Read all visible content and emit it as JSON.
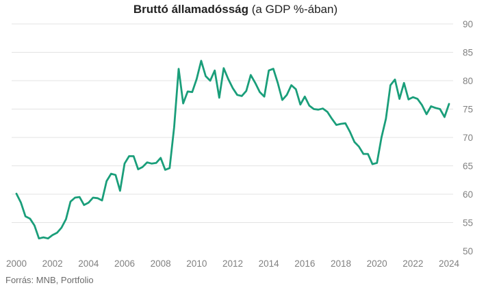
{
  "title": {
    "bold": "Bruttó államadósság",
    "rest": " (a GDP %-ában)"
  },
  "source": "Forrás: MNB, Portfolio",
  "colors": {
    "line": "#1a9e7a",
    "grid": "#e3e3e3",
    "tick": "#808080"
  },
  "chart_data": {
    "type": "line",
    "title": "Bruttó államadósság (a GDP %-ában)",
    "xlabel": "",
    "ylabel": "",
    "xlim": [
      2000,
      2024
    ],
    "ylim": [
      50,
      90
    ],
    "grid": true,
    "y_axis_side": "right",
    "x_ticks": [
      "2000",
      "2002",
      "2004",
      "2006",
      "2008",
      "2010",
      "2012",
      "2014",
      "2016",
      "2018",
      "2020",
      "2022",
      "2024"
    ],
    "y_ticks": [
      "50",
      "55",
      "60",
      "65",
      "70",
      "75",
      "80",
      "85",
      "90"
    ],
    "series": [
      {
        "x": [
          2000.0,
          2000.25,
          2000.5,
          2000.75,
          2001.0,
          2001.25,
          2001.5,
          2001.75,
          2002.0,
          2002.25,
          2002.5,
          2002.75,
          2003.0,
          2003.25,
          2003.5,
          2003.75,
          2004.0,
          2004.25,
          2004.5,
          2004.75,
          2005.0,
          2005.25,
          2005.5,
          2005.75,
          2006.0,
          2006.25,
          2006.5,
          2006.75,
          2007.0,
          2007.25,
          2007.5,
          2007.75,
          2008.0,
          2008.25,
          2008.5,
          2008.75,
          2009.0,
          2009.25,
          2009.5,
          2009.75,
          2010.0,
          2010.25,
          2010.5,
          2010.75,
          2011.0,
          2011.25,
          2011.5,
          2011.75,
          2012.0,
          2012.25,
          2012.5,
          2012.75,
          2013.0,
          2013.25,
          2013.5,
          2013.75,
          2014.0,
          2014.25,
          2014.5,
          2014.75,
          2015.0,
          2015.25,
          2015.5,
          2015.75,
          2016.0,
          2016.25,
          2016.5,
          2016.75,
          2017.0,
          2017.25,
          2017.5,
          2017.75,
          2018.0,
          2018.25,
          2018.5,
          2018.75,
          2019.0,
          2019.25,
          2019.5,
          2019.75,
          2020.0,
          2020.25,
          2020.5,
          2020.75,
          2021.0,
          2021.25,
          2021.5,
          2021.75,
          2022.0,
          2022.25,
          2022.5,
          2022.75,
          2023.0,
          2023.25,
          2023.5,
          2023.75,
          2024.0
        ],
        "values": [
          60.1,
          58.5,
          56.1,
          55.7,
          54.5,
          52.2,
          52.4,
          52.2,
          52.8,
          53.2,
          54.1,
          55.6,
          58.7,
          59.4,
          59.5,
          58.1,
          58.5,
          59.4,
          59.3,
          58.9,
          62.3,
          63.6,
          63.4,
          60.6,
          65.4,
          66.7,
          66.7,
          64.4,
          64.8,
          65.6,
          65.4,
          65.5,
          66.4,
          64.3,
          64.6,
          71.8,
          82.1,
          76.0,
          78.1,
          78.0,
          80.3,
          83.5,
          80.8,
          80.0,
          81.8,
          77.0,
          82.2,
          80.3,
          78.7,
          77.5,
          77.3,
          78.2,
          81.0,
          79.6,
          78.0,
          77.2,
          81.8,
          82.1,
          79.6,
          76.6,
          77.5,
          79.2,
          78.5,
          75.8,
          77.2,
          75.6,
          75.0,
          74.9,
          75.1,
          74.5,
          73.3,
          72.2,
          72.4,
          72.5,
          71.0,
          69.2,
          68.4,
          67.1,
          67.1,
          65.3,
          65.5,
          70.0,
          73.3,
          79.2,
          80.2,
          76.8,
          79.6,
          76.7,
          77.1,
          76.8,
          75.7,
          74.1,
          75.5,
          75.2,
          75.0,
          73.6,
          75.9
        ]
      }
    ]
  }
}
